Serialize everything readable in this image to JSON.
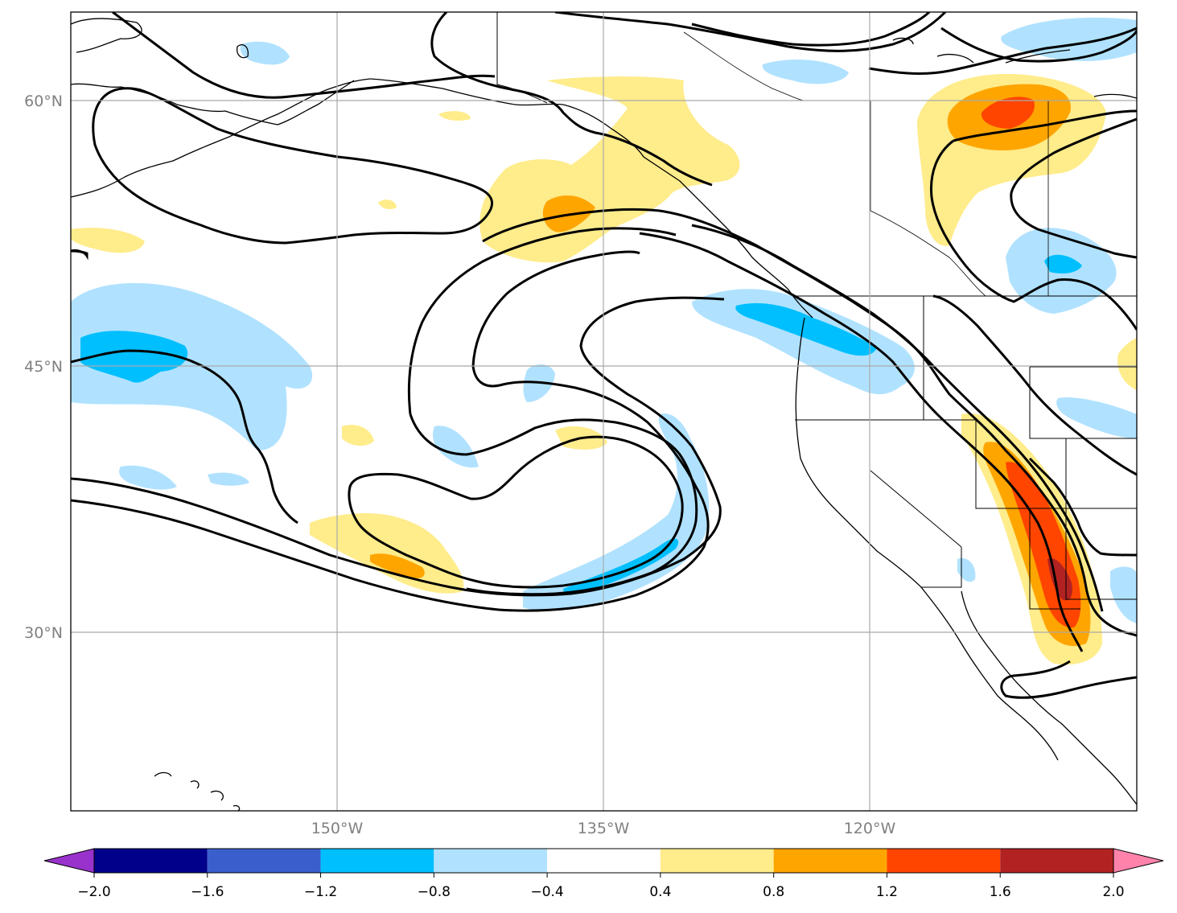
{
  "map": {
    "lat_labels": [
      "60°N",
      "45°N",
      "30°N"
    ],
    "lon_labels": [
      "150°W",
      "135°W",
      "120°W"
    ]
  },
  "colorbar": {
    "ticks": [
      "−2.0",
      "−1.6",
      "−1.2",
      "−0.8",
      "−0.4",
      "0.4",
      "0.8",
      "1.2",
      "1.6",
      "2.0"
    ],
    "extend": "both",
    "colors": {
      "under": "#9932cc",
      "bins": [
        "#00008b",
        "#3a5fcd",
        "#00bfff",
        "#b0e2ff",
        "#ffffff",
        "#ffec8b",
        "#ffa500",
        "#ff4500",
        "#b22222"
      ],
      "over": "#ff82ab"
    }
  },
  "style": {
    "contour_color": "#000000",
    "coast_color": "#000000",
    "grid_color": "#a9a9a9"
  }
}
